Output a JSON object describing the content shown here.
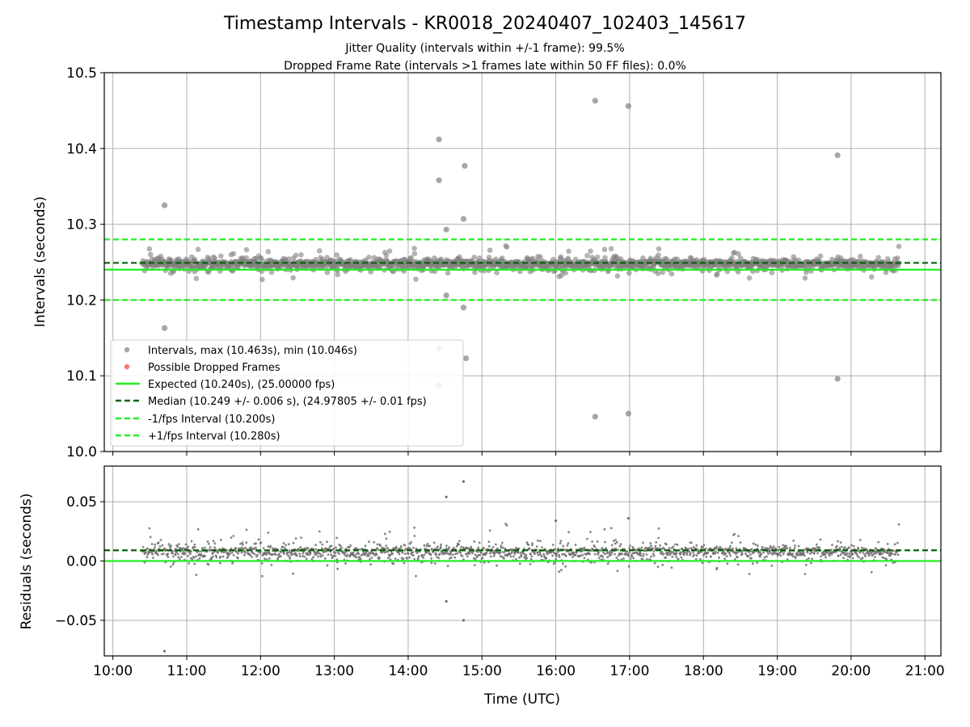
{
  "chart_data": [
    {
      "type": "scatter",
      "title": "Timestamp Intervals - KR0018_20240407_102403_145617",
      "subtitle_1": "Jitter Quality (intervals within +/-1 frame): 99.5%",
      "subtitle_2": "Dropped Frame Rate (intervals >1 frames late within 50 FF files): 0.0%",
      "ylabel": "Intervals (seconds)",
      "xlim": [
        "09:53",
        "21:13"
      ],
      "ylim": [
        10.0,
        10.5
      ],
      "yticks": [
        "10.0",
        "10.1",
        "10.2",
        "10.3",
        "10.4",
        "10.5"
      ],
      "grid": true,
      "legend_position": "lower-left",
      "legend": [
        "Intervals, max (10.463s), min (10.046s)",
        "Possible Dropped Frames",
        "Expected (10.240s), (25.00000 fps)",
        "Median (10.249 +/- 0.006 s), (24.97805 +/- 0.01 fps)",
        "-1/fps Interval (10.200s)",
        "+1/fps Interval (10.280s)"
      ],
      "reference_lines": {
        "expected": 10.24,
        "median": 10.249,
        "minus_one_fps": 10.2,
        "plus_one_fps": 10.28
      },
      "data_range": {
        "x_start": "10:24",
        "x_end": "20:39",
        "bulk_low": 10.24,
        "bulk_high": 10.258
      },
      "outliers": [
        {
          "x": "10:42",
          "y": 10.325
        },
        {
          "x": "10:42",
          "y": 10.163
        },
        {
          "x": "14:25",
          "y": 10.412
        },
        {
          "x": "14:25",
          "y": 10.358
        },
        {
          "x": "14:25",
          "y": 10.136
        },
        {
          "x": "14:25",
          "y": 10.087
        },
        {
          "x": "14:31",
          "y": 10.293
        },
        {
          "x": "14:31",
          "y": 10.206
        },
        {
          "x": "14:46",
          "y": 10.377
        },
        {
          "x": "14:45",
          "y": 10.307
        },
        {
          "x": "14:45",
          "y": 10.19
        },
        {
          "x": "14:47",
          "y": 10.123
        },
        {
          "x": "16:32",
          "y": 10.463
        },
        {
          "x": "16:32",
          "y": 10.046
        },
        {
          "x": "16:59",
          "y": 10.456
        },
        {
          "x": "16:59",
          "y": 10.05
        },
        {
          "x": "19:49",
          "y": 10.391
        },
        {
          "x": "19:49",
          "y": 10.096
        }
      ],
      "colors": {
        "points": "#808080",
        "dropped": "#ff5555",
        "expected": "#22ee22",
        "median": "#006400",
        "interval_bounds": "#22ee22"
      }
    },
    {
      "type": "scatter",
      "ylabel": "Residuals (seconds)",
      "xlabel": "Time (UTC)",
      "xlim": [
        "09:53",
        "21:13"
      ],
      "ylim": [
        -0.08,
        0.08
      ],
      "yticks": [
        "−0.05",
        "0.00",
        "0.05"
      ],
      "xticks": [
        "10:00",
        "11:00",
        "12:00",
        "13:00",
        "14:00",
        "15:00",
        "16:00",
        "17:00",
        "18:00",
        "19:00",
        "20:00",
        "21:00"
      ],
      "grid": true,
      "reference_lines": {
        "zero": 0.0,
        "median_offset": 0.009
      },
      "outliers": [
        {
          "x": "10:42",
          "y": -0.076
        },
        {
          "x": "14:31",
          "y": 0.054
        },
        {
          "x": "14:31",
          "y": -0.034
        },
        {
          "x": "14:45",
          "y": 0.067
        },
        {
          "x": "14:45",
          "y": -0.05
        },
        {
          "x": "16:59",
          "y": 0.036
        },
        {
          "x": "16:00",
          "y": 0.034
        }
      ]
    }
  ]
}
